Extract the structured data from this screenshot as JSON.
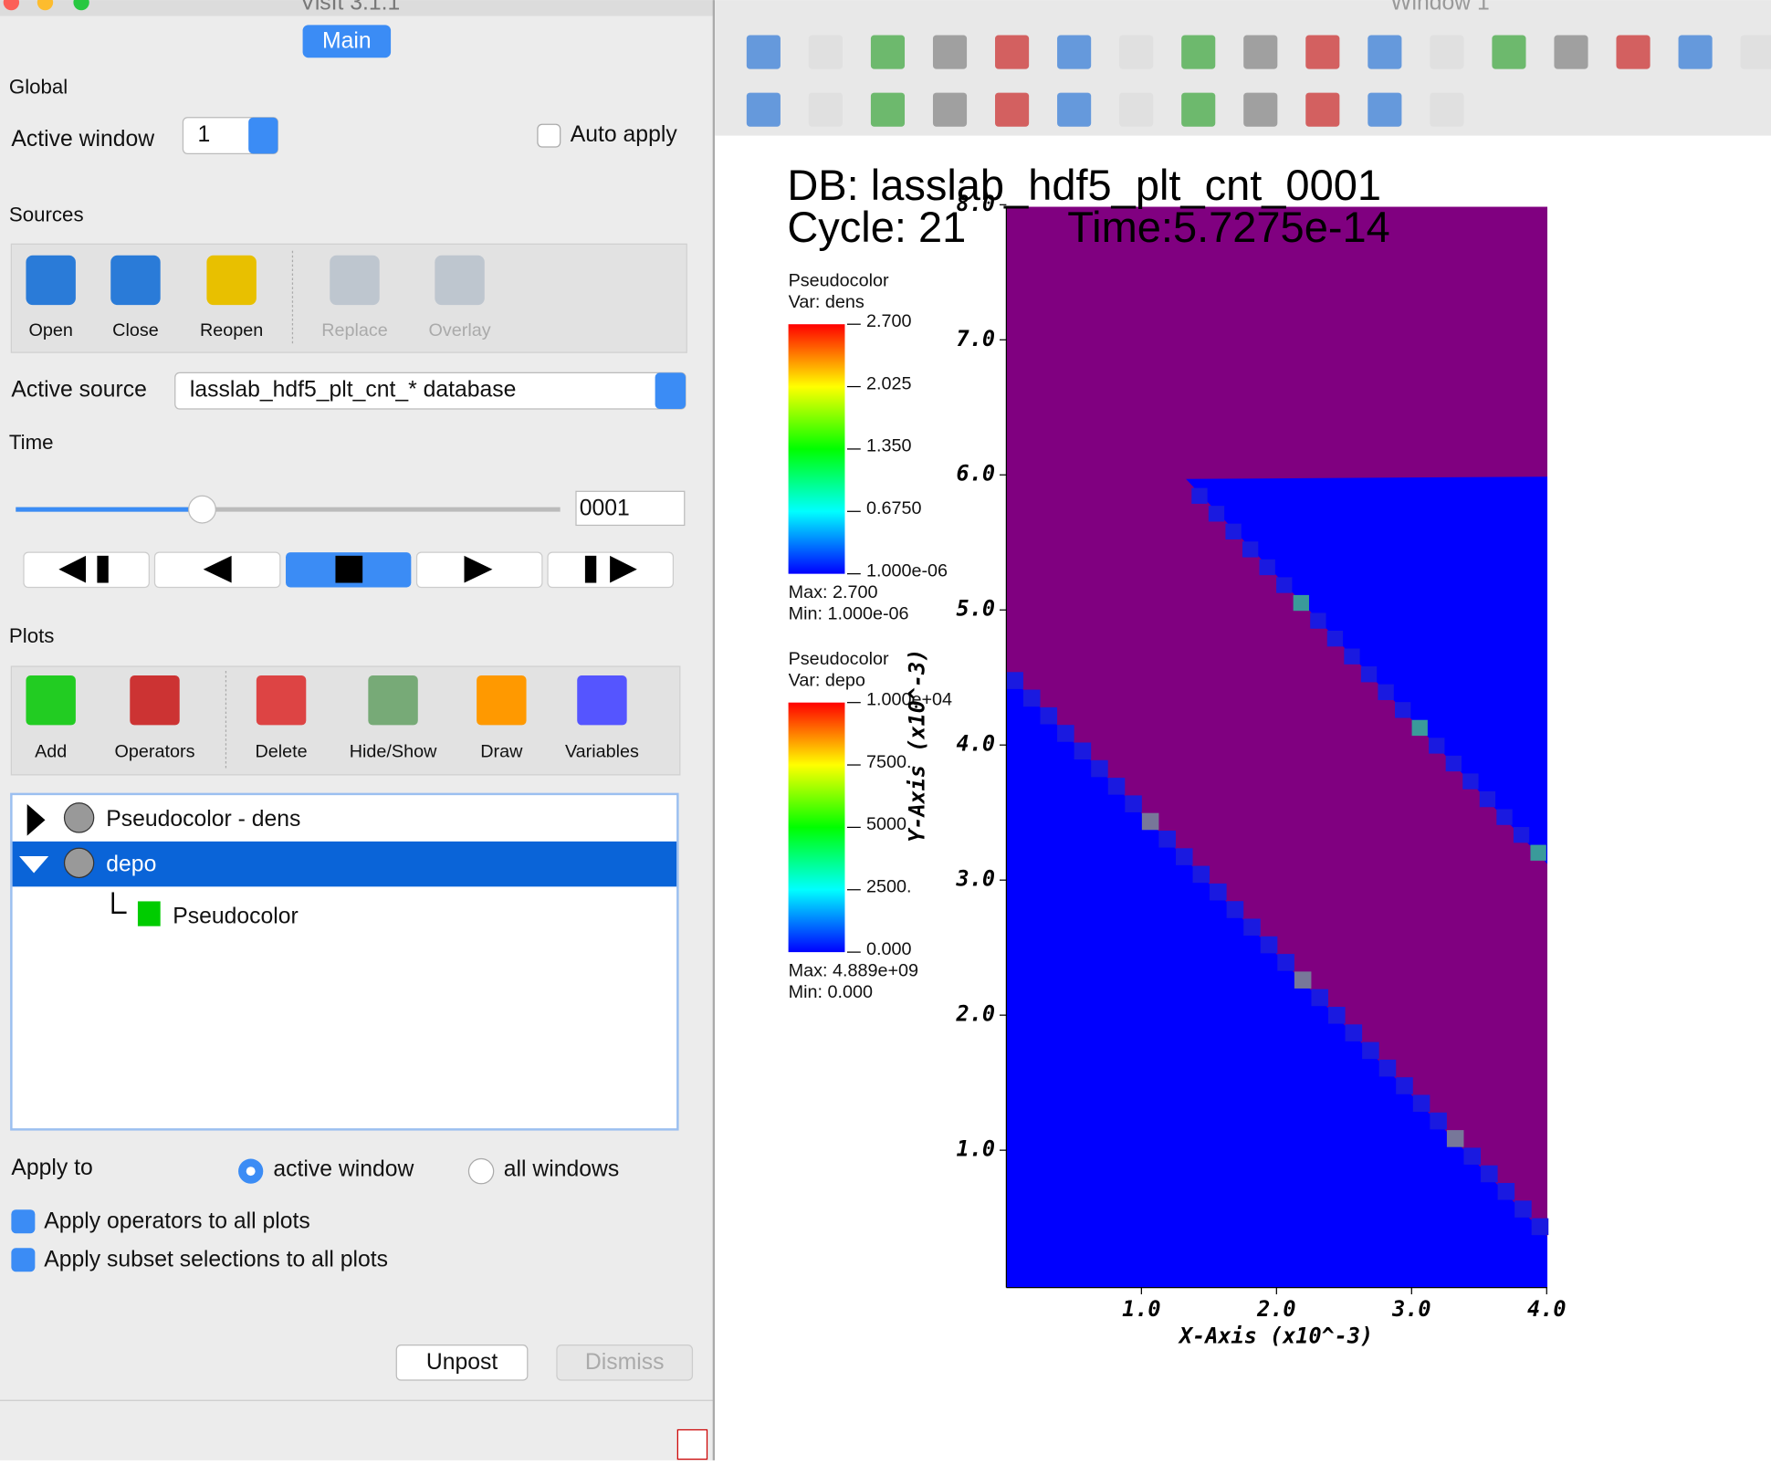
{
  "window_titles": {
    "main": "VisIt 3.1.1",
    "viz": "Window 1"
  },
  "tab": "Main",
  "global": {
    "heading": "Global",
    "active_window_label": "Active window",
    "active_window_value": "1",
    "auto_apply": "Auto apply"
  },
  "sources": {
    "heading": "Sources",
    "buttons": [
      "Open",
      "Close",
      "Reopen",
      "Replace",
      "Overlay"
    ],
    "active_source_label": "Active source",
    "active_source_value": "lasslab_hdf5_plt_cnt_* database"
  },
  "time": {
    "heading": "Time",
    "value": "0001"
  },
  "plots": {
    "heading": "Plots",
    "buttons": [
      "Add",
      "Operators",
      "Delete",
      "Hide/Show",
      "Draw",
      "Variables"
    ],
    "list": [
      "Pseudocolor - dens",
      "depo",
      "Pseudocolor"
    ]
  },
  "apply": {
    "label": "Apply to",
    "options": [
      "active window",
      "all windows"
    ],
    "checkboxes": [
      "Apply operators to all plots",
      "Apply subset selections to all plots"
    ]
  },
  "buttons": [
    "Unpost",
    "Dismiss"
  ],
  "viz": {
    "db": "DB: lasslab_hdf5_plt_cnt_0001",
    "cycle": "Cycle: 21",
    "time": "Time:5.7275e-14",
    "legends": [
      {
        "title": "Pseudocolor",
        "var": "Var: dens",
        "labels": [
          "2.700",
          "2.025",
          "1.350",
          "0.6750",
          "1.000e-06"
        ],
        "max": "Max:  2.700",
        "min": "Min:  1.000e-06"
      },
      {
        "title": "Pseudocolor",
        "var": "Var: depo",
        "labels": [
          "1.000e+04",
          "7500.",
          "5000.",
          "2500.",
          "0.000"
        ],
        "max": "Max:  4.889e+09",
        "min": "Min:  0.000"
      }
    ],
    "y_ticks": [
      "1.0",
      "2.0",
      "3.0",
      "4.0",
      "5.0",
      "6.0",
      "7.0",
      "8.0"
    ],
    "x_ticks": [
      "1.0",
      "2.0",
      "3.0",
      "4.0"
    ],
    "y_axis": "Y-Axis  (x10^-3)",
    "x_axis": "X-Axis  (x10^-3)"
  }
}
